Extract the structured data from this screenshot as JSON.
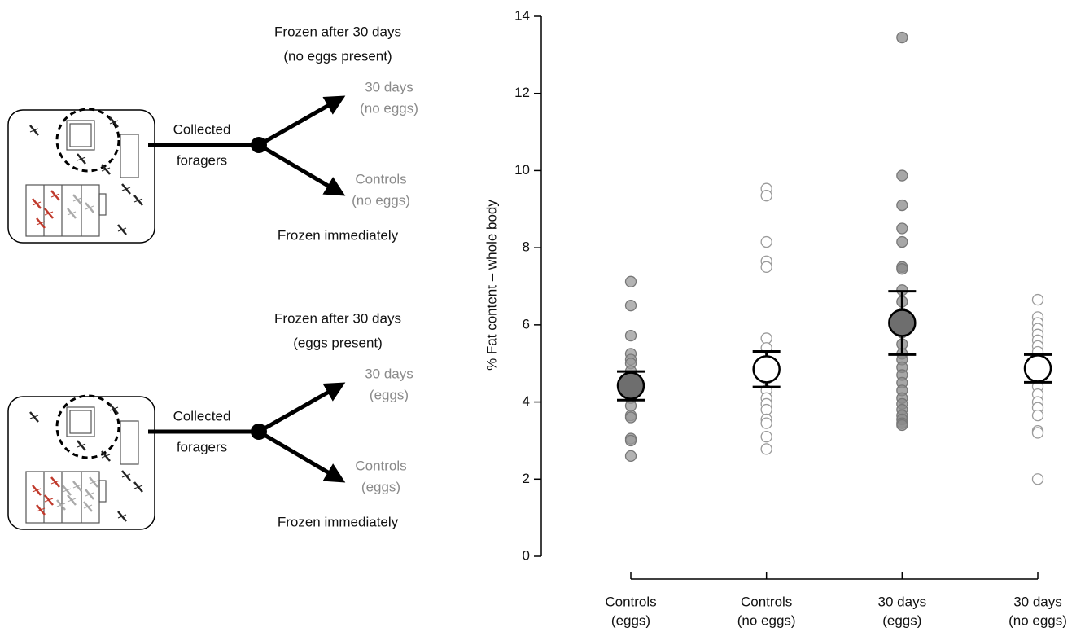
{
  "panels": [
    {
      "title": [
        "Frozen after 30 days",
        "(no eggs present)"
      ],
      "collected": [
        "Collected",
        "foragers"
      ],
      "upper": [
        "30 days",
        "(no eggs)"
      ],
      "lower": [
        "Controls",
        "(no eggs)"
      ],
      "footer": "Frozen immediately"
    },
    {
      "title": [
        "Frozen after 30 days",
        "(eggs present)"
      ],
      "collected": [
        "Collected",
        "foragers"
      ],
      "upper": [
        "30 days",
        "(eggs)"
      ],
      "lower": [
        "Controls",
        "(eggs)"
      ],
      "footer": "Frozen immediately"
    }
  ],
  "chart_data": {
    "type": "strip",
    "ylabel": "% Fat content – whole body",
    "ylim": [
      0,
      14
    ],
    "yticks": [
      0,
      2,
      4,
      6,
      8,
      10,
      12,
      14
    ],
    "categories": [
      [
        "Controls",
        "(eggs)"
      ],
      [
        "Controls",
        "(no eggs)"
      ],
      [
        "30 days",
        "(eggs)"
      ],
      [
        "30 days",
        "(no eggs)"
      ]
    ],
    "groups": [
      {
        "filled": true,
        "color": "#9a9a9a",
        "mean_color": "#6e6e6e",
        "mean": 4.42,
        "error": 0.37,
        "points": [
          7.12,
          6.5,
          5.72,
          5.25,
          5.1,
          5.0,
          4.8,
          4.6,
          4.4,
          4.2,
          4.1,
          3.9,
          3.65,
          3.6,
          3.05,
          3.0,
          2.6
        ]
      },
      {
        "filled": false,
        "color": "#9a9a9a",
        "mean_color": "#ffffff",
        "mean": 4.85,
        "error": 0.46,
        "points": [
          9.53,
          9.35,
          8.15,
          7.65,
          7.5,
          5.65,
          5.4,
          5.0,
          4.8,
          4.6,
          4.3,
          4.1,
          3.95,
          3.8,
          3.55,
          3.45,
          3.1,
          2.78
        ]
      },
      {
        "filled": true,
        "color": "#8a8a8a",
        "mean_color": "#6e6e6e",
        "mean": 6.05,
        "error": 0.82,
        "points": [
          13.45,
          9.87,
          9.1,
          8.5,
          8.15,
          7.5,
          7.45,
          6.9,
          6.6,
          6.3,
          6.1,
          5.8,
          5.5,
          5.25,
          5.1,
          4.9,
          4.7,
          4.5,
          4.3,
          4.1,
          3.95,
          3.8,
          3.65,
          3.55,
          3.45,
          3.4
        ]
      },
      {
        "filled": false,
        "color": "#9a9a9a",
        "mean_color": "#ffffff",
        "mean": 4.87,
        "error": 0.36,
        "points": [
          6.65,
          6.2,
          6.05,
          5.9,
          5.75,
          5.6,
          5.45,
          5.3,
          5.1,
          4.95,
          4.8,
          4.6,
          4.4,
          4.2,
          4.0,
          3.85,
          3.65,
          3.25,
          3.2,
          2.0
        ]
      }
    ]
  }
}
